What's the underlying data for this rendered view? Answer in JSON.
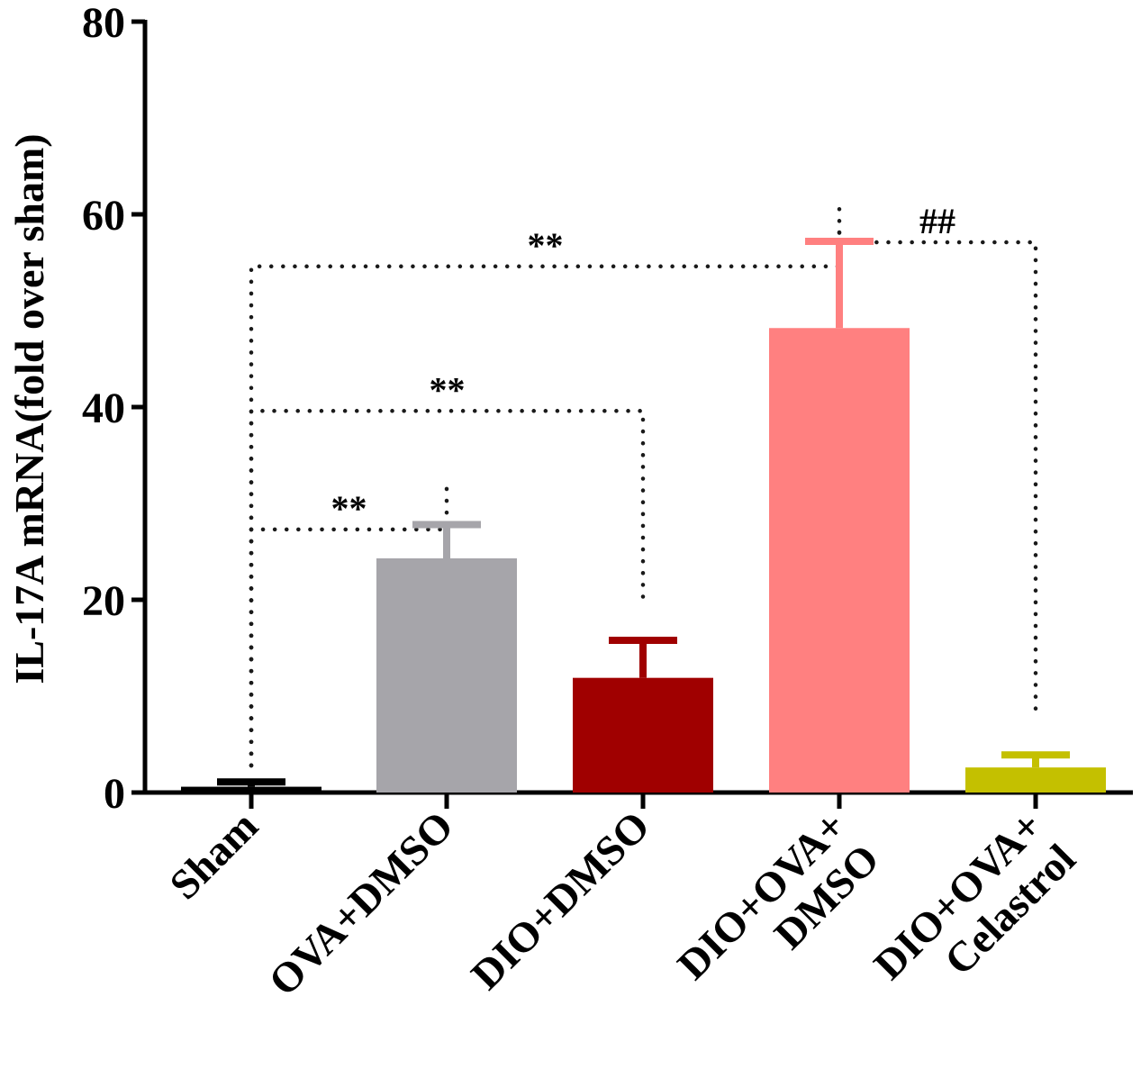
{
  "chart_data": {
    "type": "bar",
    "title": "",
    "xlabel": "",
    "ylabel": "IL-17A mRNA(fold over sham)",
    "ylim": [
      0,
      80
    ],
    "yticks": [
      0,
      20,
      40,
      60,
      80
    ],
    "grid": false,
    "legend": "none",
    "categories": [
      {
        "lines": [
          "Sham"
        ],
        "value": 0.6,
        "error": 0.5,
        "color": "#000000"
      },
      {
        "lines": [
          "OVA+DMSO"
        ],
        "value": 24.3,
        "error": 3.5,
        "color": "#a6a5aa"
      },
      {
        "lines": [
          "DIO+DMSO"
        ],
        "value": 11.9,
        "error": 3.9,
        "color": "#a00000"
      },
      {
        "lines": [
          "DIO+OVA+",
          "DMSO"
        ],
        "value": 48.2,
        "error": 9.0,
        "color": "#ff8080"
      },
      {
        "lines": [
          "DIO+OVA+",
          "Celastrol"
        ],
        "value": 2.6,
        "error": 1.3,
        "color": "#c4c000"
      }
    ],
    "annotations": [
      {
        "text": "**",
        "from": 0,
        "to": 1,
        "level": 27.3
      },
      {
        "text": "**",
        "from": 0,
        "to": 2,
        "level": 39.6
      },
      {
        "text": "**",
        "from": 0,
        "to": 3,
        "level": 54.6
      },
      {
        "text": "##",
        "from": 3,
        "to": 4,
        "level": 57.1
      }
    ]
  }
}
